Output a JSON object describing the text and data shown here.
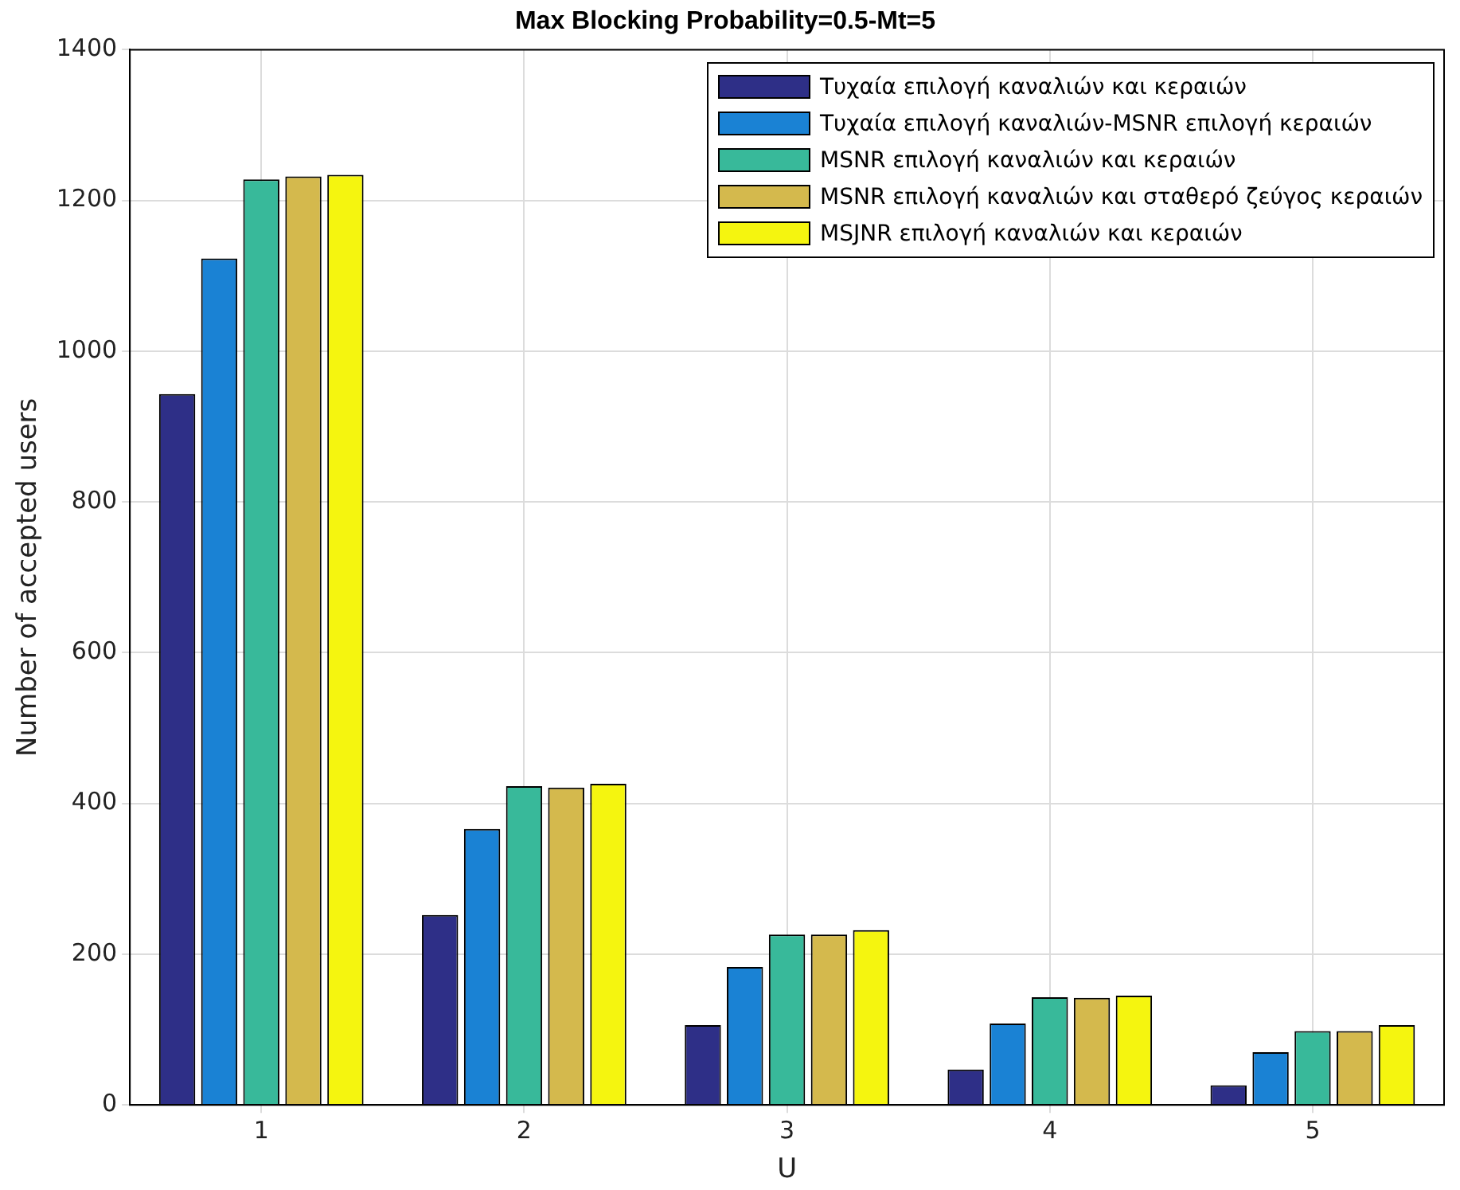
{
  "chart_data": {
    "type": "bar",
    "title": "Max Blocking Probability=0.5-Mt=5",
    "xlabel": "U",
    "ylabel": "Number of accepted users",
    "categories": [
      "1",
      "2",
      "3",
      "4",
      "5"
    ],
    "series": [
      {
        "name": "Τυχαία επιλογή καναλιών και κεραιών",
        "color": "#2e2f87",
        "values": [
          943,
          252,
          106,
          47,
          26
        ]
      },
      {
        "name": "Τυχαία επιλογή καναλιών-MSNR επιλογή κεραιών",
        "color": "#1a82d4",
        "values": [
          1123,
          366,
          183,
          108,
          70
        ]
      },
      {
        "name": "MSNR επιλογή καναλιών και κεραιών",
        "color": "#38b99a",
        "values": [
          1228,
          423,
          226,
          143,
          98
        ]
      },
      {
        "name": "MSNR επιλογή καναλιών και σταθερό ζεύγος κεραιών",
        "color": "#d4b94d",
        "values": [
          1232,
          421,
          226,
          142,
          98
        ]
      },
      {
        "name": "MSJNR επιλογή καναλιών και κεραιών",
        "color": "#f5f50f",
        "values": [
          1234,
          426,
          232,
          145,
          106
        ]
      }
    ],
    "ylim": [
      0,
      1400
    ],
    "yticks": [
      0,
      200,
      400,
      600,
      800,
      1000,
      1200,
      1400
    ],
    "grid": true,
    "legend": "top right"
  }
}
